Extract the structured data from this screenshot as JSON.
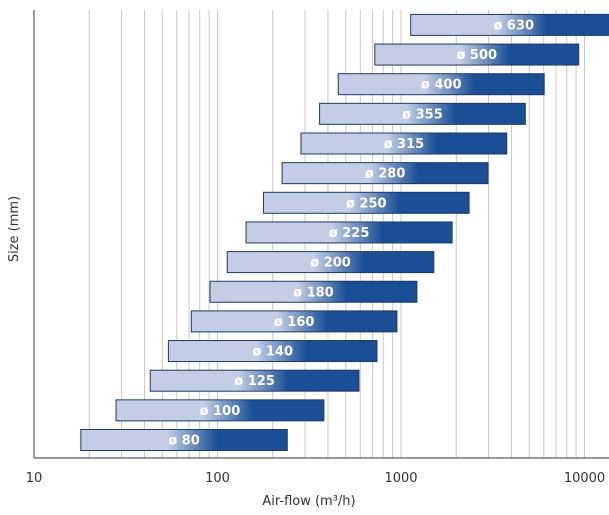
{
  "chart_data": {
    "type": "bar",
    "orientation": "horizontal-range",
    "xlabel": "Air-flow (m³/h)",
    "ylabel": "Size (mm)",
    "xscale": "log",
    "xlim": [
      10,
      15000
    ],
    "x_ticks": [
      "10",
      "100",
      "1000",
      "10000"
    ],
    "grid": "vertical",
    "categories": [
      "ø 80",
      "ø 100",
      "ø 125",
      "ø 140",
      "ø 160",
      "ø 180",
      "ø 200",
      "ø 225",
      "ø 250",
      "ø 280",
      "ø 315",
      "ø 355",
      "ø 400",
      "ø 500",
      "ø 630"
    ],
    "ranges": [
      [
        18,
        240
      ],
      [
        28,
        380
      ],
      [
        43,
        590
      ],
      [
        54,
        740
      ],
      [
        72,
        950
      ],
      [
        91,
        1220
      ],
      [
        113,
        1510
      ],
      [
        143,
        1900
      ],
      [
        178,
        2350
      ],
      [
        225,
        2980
      ],
      [
        285,
        3770
      ],
      [
        360,
        4760
      ],
      [
        455,
        6030
      ],
      [
        720,
        9300
      ],
      [
        1130,
        15000
      ]
    ],
    "colors": {
      "bar_light": "#c3cde6",
      "bar_dark": "#1a4f96",
      "bar_border": "#1f3a66",
      "grid": "#c8c8c8",
      "axis": "#333333"
    }
  }
}
